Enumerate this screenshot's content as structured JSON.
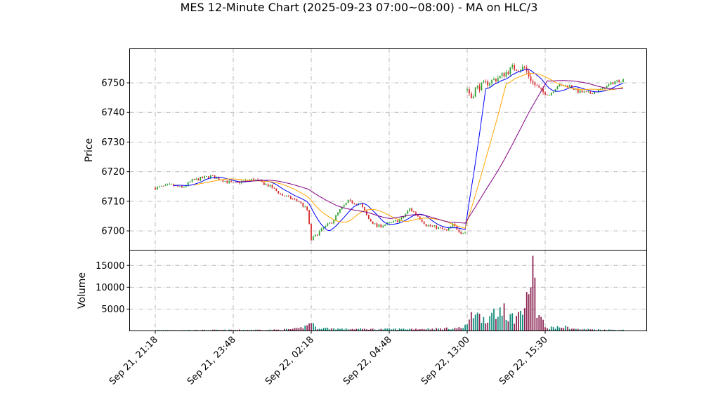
{
  "chart_data": {
    "type": "candlestick",
    "title": "MES 12-Minute Chart (2025-09-23 07:00~08:00) - MA on HLC/3",
    "price_panel": {
      "ylabel": "Price",
      "yticks": [
        6700,
        6710,
        6720,
        6730,
        6740,
        6750
      ],
      "ylim": [
        6693.5,
        6761.5
      ],
      "grid": true
    },
    "volume_panel": {
      "ylabel": "Volume",
      "yticks": [
        5000,
        10000,
        15000
      ],
      "ylim": [
        0,
        18500
      ],
      "grid": true
    },
    "xticks": [
      {
        "index": 0,
        "label": "Sep 21, 21:18"
      },
      {
        "index": 38,
        "label": "Sep 21, 23:48"
      },
      {
        "index": 76,
        "label": "Sep 22, 02:18"
      },
      {
        "index": 114,
        "label": "Sep 22, 04:48"
      },
      {
        "index": 152,
        "label": "Sep 22, 13:00"
      },
      {
        "index": 190,
        "label": "Sep 22, 15:30"
      }
    ],
    "bar_count": 229,
    "price_anchors": [
      [
        0,
        6714.5
      ],
      [
        8,
        6715.5
      ],
      [
        13,
        6714.5
      ],
      [
        18,
        6717
      ],
      [
        27,
        6718.5
      ],
      [
        38,
        6716
      ],
      [
        48,
        6717.5
      ],
      [
        56,
        6715
      ],
      [
        62,
        6712
      ],
      [
        70,
        6710
      ],
      [
        74,
        6707
      ],
      [
        76,
        6697
      ],
      [
        82,
        6701
      ],
      [
        86,
        6703
      ],
      [
        90,
        6707
      ],
      [
        94,
        6710
      ],
      [
        100,
        6709
      ],
      [
        104,
        6704
      ],
      [
        108,
        6701.5
      ],
      [
        114,
        6702.5
      ],
      [
        120,
        6704
      ],
      [
        124,
        6707.5
      ],
      [
        128,
        6705
      ],
      [
        132,
        6702
      ],
      [
        138,
        6701
      ],
      [
        142,
        6700
      ],
      [
        145,
        6702
      ],
      [
        149,
        6699.5
      ],
      [
        151,
        6699.5
      ],
      [
        152,
        6748
      ],
      [
        154,
        6745
      ],
      [
        156,
        6748
      ],
      [
        162,
        6750
      ],
      [
        168,
        6752
      ],
      [
        174,
        6755
      ],
      [
        180,
        6755
      ],
      [
        184,
        6750
      ],
      [
        188,
        6747
      ],
      [
        192,
        6746
      ],
      [
        196,
        6749
      ],
      [
        202,
        6749
      ],
      [
        206,
        6747
      ],
      [
        212,
        6746.5
      ],
      [
        218,
        6748
      ],
      [
        224,
        6750.5
      ],
      [
        228,
        6751
      ]
    ],
    "volume_anchors": [
      [
        0,
        150
      ],
      [
        60,
        250
      ],
      [
        70,
        500
      ],
      [
        74,
        1200
      ],
      [
        76,
        2400
      ],
      [
        78,
        700
      ],
      [
        90,
        450
      ],
      [
        110,
        380
      ],
      [
        140,
        500
      ],
      [
        150,
        700
      ],
      [
        152,
        2000
      ],
      [
        155,
        3800
      ],
      [
        158,
        3200
      ],
      [
        165,
        2800
      ],
      [
        170,
        3500
      ],
      [
        175,
        3000
      ],
      [
        180,
        5000
      ],
      [
        185,
        4000
      ],
      [
        188,
        3000
      ],
      [
        190,
        700
      ],
      [
        200,
        900
      ],
      [
        205,
        400
      ],
      [
        228,
        200
      ]
    ],
    "volume_spikes": [
      [
        152,
        1500
      ],
      [
        153,
        2600
      ],
      [
        154,
        4300
      ],
      [
        156,
        3700
      ],
      [
        158,
        3900
      ],
      [
        165,
        5100
      ],
      [
        168,
        5400
      ],
      [
        170,
        6300
      ],
      [
        178,
        4600
      ],
      [
        180,
        5200
      ],
      [
        181,
        8900
      ],
      [
        182,
        8400
      ],
      [
        183,
        10000
      ],
      [
        184,
        17200
      ],
      [
        185,
        12200
      ],
      [
        187,
        3600
      ],
      [
        188,
        3200
      ],
      [
        196,
        1100
      ],
      [
        200,
        1200
      ]
    ],
    "series": [
      {
        "color": "#0000ff",
        "window": 10
      },
      {
        "color": "#ffa500",
        "window": 20
      },
      {
        "color": "#800080",
        "window": 40
      }
    ],
    "colors": {
      "up": "#2ca02c",
      "down": "#d62728",
      "vol_up": "#0e8a7a",
      "vol_down": "#8b2252"
    }
  }
}
